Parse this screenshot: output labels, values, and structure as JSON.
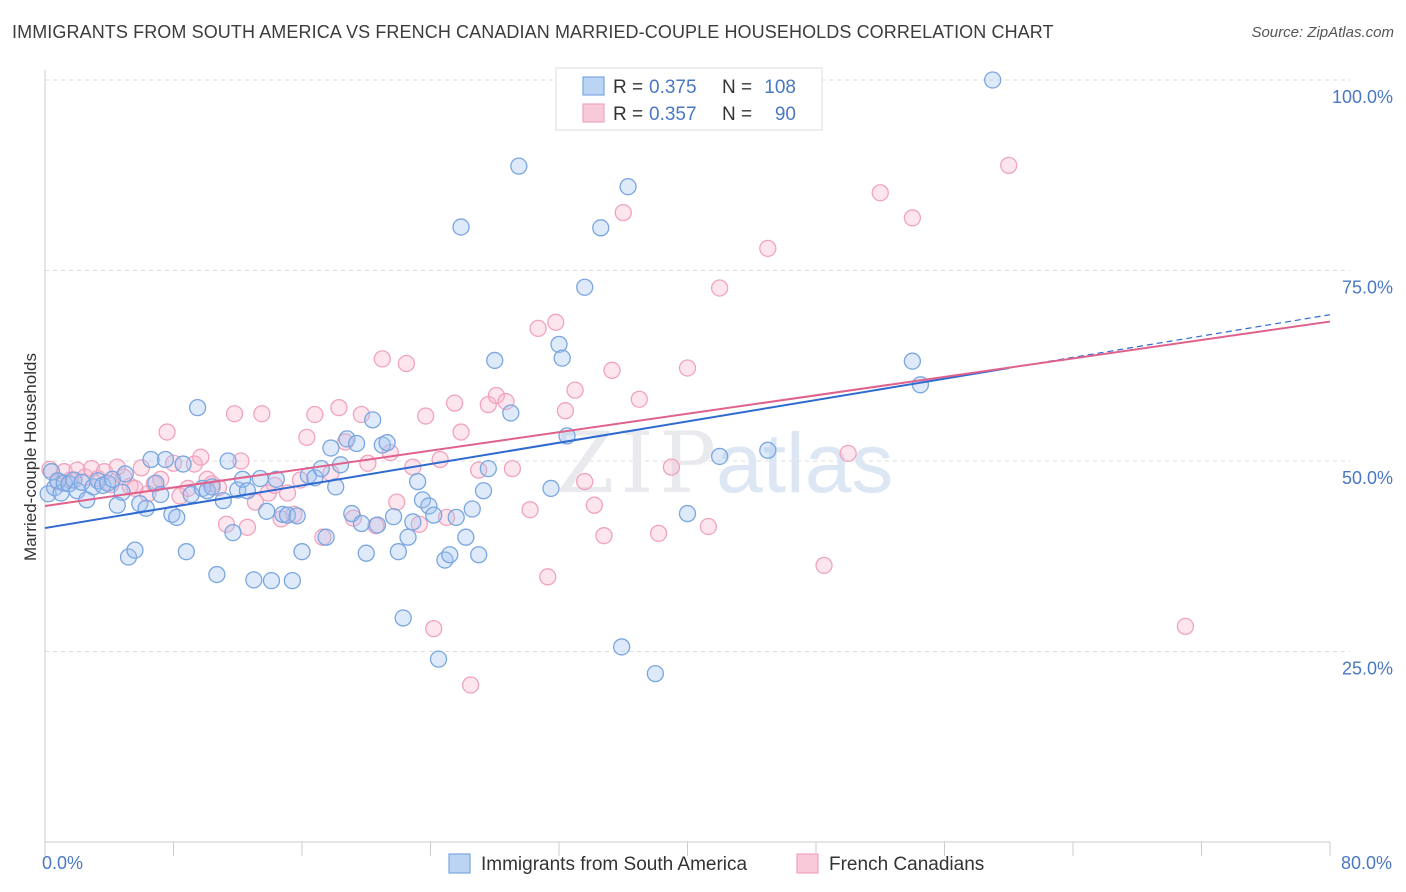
{
  "title": "IMMIGRANTS FROM SOUTH AMERICA VS FRENCH CANADIAN MARRIED-COUPLE HOUSEHOLDS CORRELATION CHART",
  "source": "Source: ZipAtlas.com",
  "watermark": {
    "zip": "ZIP",
    "atlas": "atlas"
  },
  "chart_data": {
    "type": "scatter",
    "title": "IMMIGRANTS FROM SOUTH AMERICA VS FRENCH CANADIAN MARRIED-COUPLE HOUSEHOLDS CORRELATION CHART",
    "xlabel": "",
    "ylabel": "Married-couple Households",
    "xlim": [
      0,
      80
    ],
    "ylim": [
      0,
      102
    ],
    "x_tick_labels": [
      "0.0%",
      "80.0%"
    ],
    "y_ticks": [
      25,
      50,
      75,
      100
    ],
    "y_tick_labels": [
      "25.0%",
      "50.0%",
      "75.0%",
      "100.0%"
    ],
    "legend": [
      {
        "r_label": "R =",
        "r": "0.375",
        "n_label": "N =",
        "n": "108"
      },
      {
        "r_label": "R =",
        "r": "0.357",
        "n_label": "N =",
        "n": "90"
      }
    ],
    "series": [
      {
        "name": "Immigrants from South America",
        "color": "#7aa6e0",
        "line_color": "#2f6ad0",
        "trend": {
          "x0": 0,
          "y0": 41.2,
          "x1": 80,
          "y1": 69.2,
          "solid_until": 60
        },
        "points": [
          [
            0.2,
            45.7
          ],
          [
            0.4,
            48.6
          ],
          [
            0.6,
            46.5
          ],
          [
            0.8,
            47.4
          ],
          [
            1.0,
            45.8
          ],
          [
            1.2,
            47.1
          ],
          [
            1.5,
            47.0
          ],
          [
            1.8,
            47.5
          ],
          [
            2.0,
            46.1
          ],
          [
            2.3,
            47.2
          ],
          [
            2.6,
            44.9
          ],
          [
            3.0,
            46.6
          ],
          [
            3.3,
            47.4
          ],
          [
            3.6,
            46.8
          ],
          [
            3.9,
            47.1
          ],
          [
            4.2,
            47.6
          ],
          [
            4.5,
            44.2
          ],
          [
            4.8,
            45.9
          ],
          [
            5.0,
            48.3
          ],
          [
            5.2,
            37.4
          ],
          [
            5.6,
            38.3
          ],
          [
            5.9,
            44.4
          ],
          [
            6.3,
            43.8
          ],
          [
            6.6,
            50.2
          ],
          [
            6.9,
            47.1
          ],
          [
            7.2,
            45.6
          ],
          [
            7.5,
            50.2
          ],
          [
            7.9,
            43.0
          ],
          [
            8.2,
            42.6
          ],
          [
            8.6,
            49.6
          ],
          [
            8.8,
            38.1
          ],
          [
            9.1,
            45.6
          ],
          [
            9.5,
            57.0
          ],
          [
            9.8,
            46.4
          ],
          [
            10.1,
            46.1
          ],
          [
            10.4,
            46.6
          ],
          [
            10.7,
            35.1
          ],
          [
            11.1,
            44.8
          ],
          [
            11.4,
            50.0
          ],
          [
            11.7,
            40.6
          ],
          [
            12.0,
            46.2
          ],
          [
            12.3,
            47.6
          ],
          [
            12.6,
            46.1
          ],
          [
            13.0,
            34.4
          ],
          [
            13.4,
            47.7
          ],
          [
            13.8,
            43.4
          ],
          [
            14.1,
            34.3
          ],
          [
            14.4,
            47.6
          ],
          [
            14.8,
            43.0
          ],
          [
            15.1,
            42.9
          ],
          [
            15.4,
            34.3
          ],
          [
            15.7,
            42.8
          ],
          [
            16.0,
            38.1
          ],
          [
            16.4,
            48.1
          ],
          [
            16.8,
            47.8
          ],
          [
            17.2,
            49.0
          ],
          [
            17.5,
            40.0
          ],
          [
            17.8,
            51.7
          ],
          [
            18.1,
            46.6
          ],
          [
            18.4,
            49.5
          ],
          [
            18.8,
            52.9
          ],
          [
            19.1,
            43.1
          ],
          [
            19.4,
            52.3
          ],
          [
            19.7,
            41.8
          ],
          [
            20.0,
            37.9
          ],
          [
            20.4,
            55.4
          ],
          [
            20.7,
            41.6
          ],
          [
            21.0,
            52.1
          ],
          [
            21.3,
            52.4
          ],
          [
            21.7,
            42.7
          ],
          [
            22.0,
            38.1
          ],
          [
            22.3,
            29.4
          ],
          [
            22.6,
            40.0
          ],
          [
            22.9,
            42.0
          ],
          [
            23.2,
            47.3
          ],
          [
            23.5,
            44.9
          ],
          [
            23.9,
            44.1
          ],
          [
            24.2,
            42.9
          ],
          [
            24.5,
            24.0
          ],
          [
            24.9,
            37.0
          ],
          [
            25.2,
            37.7
          ],
          [
            25.6,
            42.6
          ],
          [
            25.9,
            80.7
          ],
          [
            26.2,
            40.0
          ],
          [
            26.6,
            43.7
          ],
          [
            27.0,
            37.7
          ],
          [
            27.3,
            46.1
          ],
          [
            27.6,
            49.0
          ],
          [
            28.0,
            63.2
          ],
          [
            29.0,
            56.3
          ],
          [
            29.5,
            88.7
          ],
          [
            31.5,
            46.4
          ],
          [
            32.0,
            65.3
          ],
          [
            32.2,
            63.5
          ],
          [
            32.5,
            53.3
          ],
          [
            33.6,
            72.8
          ],
          [
            34.6,
            80.6
          ],
          [
            35.9,
            25.6
          ],
          [
            36.3,
            86.0
          ],
          [
            38.0,
            22.1
          ],
          [
            40.0,
            43.1
          ],
          [
            42.0,
            50.6
          ],
          [
            45.0,
            51.4
          ],
          [
            54.0,
            63.1
          ],
          [
            54.5,
            60.0
          ],
          [
            59.0,
            100.0
          ]
        ]
      },
      {
        "name": "French Canadians",
        "color": "#f1a3bd",
        "line_color": "#e0628c",
        "trend": {
          "x0": 0,
          "y0": 44.1,
          "x1": 80,
          "y1": 68.3
        },
        "points": [
          [
            0.3,
            48.9
          ],
          [
            0.8,
            47.3
          ],
          [
            1.2,
            48.6
          ],
          [
            1.6,
            47.5
          ],
          [
            2.0,
            48.8
          ],
          [
            2.5,
            47.9
          ],
          [
            2.9,
            49.0
          ],
          [
            3.3,
            47.7
          ],
          [
            3.7,
            48.6
          ],
          [
            4.1,
            46.9
          ],
          [
            4.5,
            49.2
          ],
          [
            4.9,
            47.9
          ],
          [
            5.3,
            46.7
          ],
          [
            5.6,
            46.4
          ],
          [
            6.0,
            49.1
          ],
          [
            6.4,
            45.7
          ],
          [
            6.8,
            47.0
          ],
          [
            7.2,
            47.6
          ],
          [
            7.6,
            53.8
          ],
          [
            8.0,
            49.7
          ],
          [
            8.4,
            45.4
          ],
          [
            8.9,
            46.4
          ],
          [
            9.3,
            49.6
          ],
          [
            9.7,
            50.5
          ],
          [
            10.1,
            47.6
          ],
          [
            10.4,
            47.0
          ],
          [
            10.8,
            46.5
          ],
          [
            11.3,
            41.7
          ],
          [
            11.8,
            56.2
          ],
          [
            12.2,
            50.0
          ],
          [
            12.6,
            41.3
          ],
          [
            13.1,
            44.6
          ],
          [
            13.5,
            56.2
          ],
          [
            13.9,
            45.8
          ],
          [
            14.3,
            46.8
          ],
          [
            14.7,
            42.4
          ],
          [
            15.1,
            45.8
          ],
          [
            15.5,
            43.0
          ],
          [
            15.9,
            47.5
          ],
          [
            16.3,
            53.1
          ],
          [
            16.8,
            56.1
          ],
          [
            17.3,
            40.0
          ],
          [
            17.8,
            48.4
          ],
          [
            18.3,
            57.0
          ],
          [
            18.7,
            52.5
          ],
          [
            19.2,
            42.5
          ],
          [
            19.7,
            56.1
          ],
          [
            20.1,
            49.7
          ],
          [
            20.6,
            41.5
          ],
          [
            21.0,
            63.4
          ],
          [
            21.5,
            51.1
          ],
          [
            21.9,
            44.6
          ],
          [
            22.5,
            62.8
          ],
          [
            22.9,
            49.2
          ],
          [
            23.3,
            41.7
          ],
          [
            23.7,
            55.9
          ],
          [
            24.2,
            28.0
          ],
          [
            24.6,
            50.2
          ],
          [
            25.0,
            42.6
          ],
          [
            25.5,
            57.6
          ],
          [
            25.9,
            53.8
          ],
          [
            26.5,
            20.6
          ],
          [
            27.0,
            48.8
          ],
          [
            27.6,
            57.4
          ],
          [
            28.1,
            58.6
          ],
          [
            28.7,
            57.8
          ],
          [
            29.1,
            49.0
          ],
          [
            30.2,
            43.6
          ],
          [
            30.7,
            67.4
          ],
          [
            31.3,
            34.8
          ],
          [
            31.8,
            68.2
          ],
          [
            32.4,
            56.6
          ],
          [
            33.0,
            59.3
          ],
          [
            33.6,
            47.3
          ],
          [
            34.2,
            44.2
          ],
          [
            34.8,
            40.2
          ],
          [
            35.3,
            61.9
          ],
          [
            36.0,
            82.6
          ],
          [
            37.0,
            58.1
          ],
          [
            38.2,
            40.5
          ],
          [
            39.0,
            49.2
          ],
          [
            40.0,
            62.2
          ],
          [
            41.3,
            41.4
          ],
          [
            42.0,
            72.7
          ],
          [
            45.0,
            77.9
          ],
          [
            48.5,
            36.3
          ],
          [
            50.0,
            51.0
          ],
          [
            52.0,
            85.2
          ],
          [
            54.0,
            81.9
          ],
          [
            60.0,
            88.8
          ],
          [
            71.0,
            28.3
          ]
        ]
      }
    ]
  },
  "bottom_legend": [
    {
      "label": "Immigrants from South America",
      "color": "#7aa6e0"
    },
    {
      "label": "French Canadians",
      "color": "#f1a3bd"
    }
  ]
}
